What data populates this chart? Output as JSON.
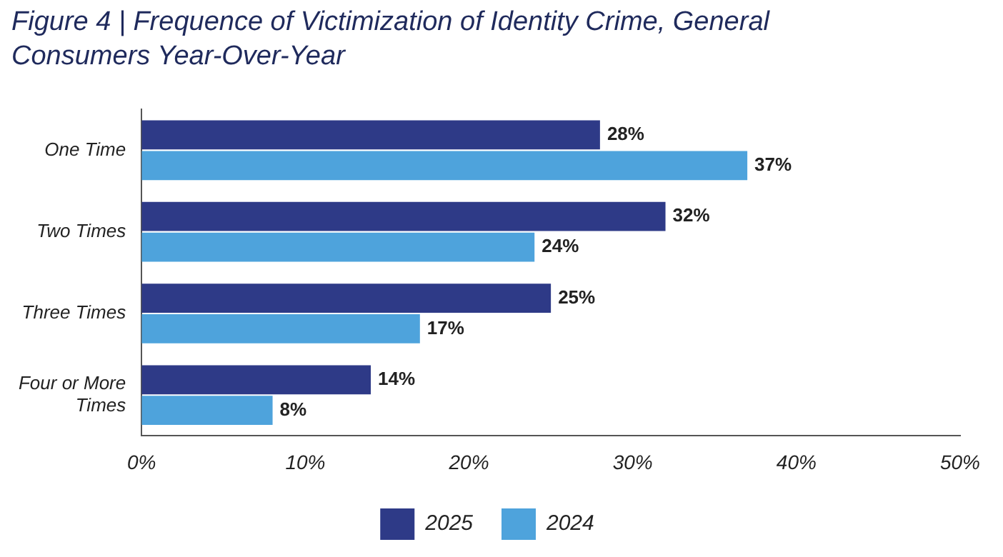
{
  "chart_data": {
    "type": "bar",
    "orientation": "horizontal",
    "title": "Figure 4 | Frequence of Victimization of Identity Crime, General Consumers Year-Over-Year",
    "categories": [
      "One Time",
      "Two Times",
      "Three Times",
      "Four or More Times"
    ],
    "series": [
      {
        "name": "2025",
        "color": "#2e3a87",
        "values": [
          28,
          32,
          25,
          14
        ],
        "value_labels": [
          "28%",
          "32%",
          "25%",
          "14%"
        ]
      },
      {
        "name": "2024",
        "color": "#4ea3dc",
        "values": [
          37,
          24,
          17,
          8
        ],
        "value_labels": [
          "37%",
          "24%",
          "17%",
          "8%"
        ]
      }
    ],
    "xlim": [
      0,
      50
    ],
    "xticks": [
      {
        "value": 0,
        "label": "0%"
      },
      {
        "value": 10,
        "label": "10%"
      },
      {
        "value": 20,
        "label": "20%"
      },
      {
        "value": 30,
        "label": "30%"
      },
      {
        "value": 40,
        "label": "40%"
      },
      {
        "value": 50,
        "label": "50%"
      }
    ],
    "grid": false,
    "legend": "bottom"
  }
}
